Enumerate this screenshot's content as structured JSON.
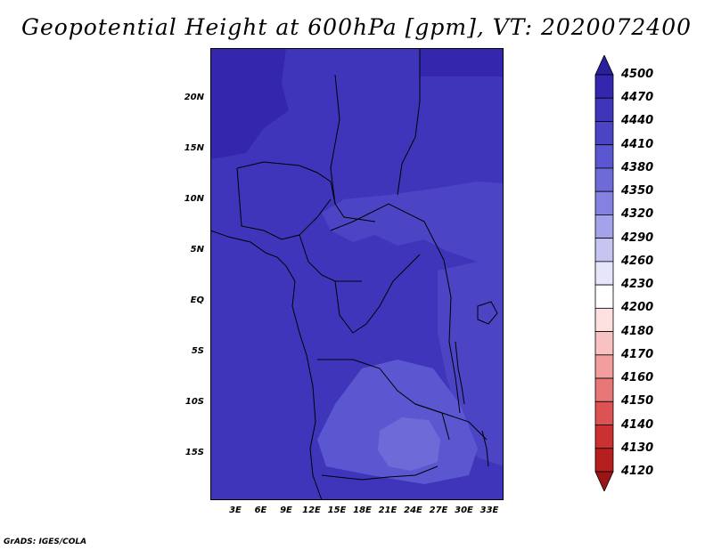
{
  "title": "Geopotential Height at 600hPa [gpm], VT: 2020072400",
  "lat_labels": [
    "20N",
    "15N",
    "10N",
    "5N",
    "EQ",
    "5S",
    "10S",
    "15S"
  ],
  "lon_labels": [
    "3E",
    "6E",
    "9E",
    "12E",
    "15E",
    "18E",
    "21E",
    "24E",
    "27E",
    "30E",
    "33E"
  ],
  "colorbar": {
    "levels": [
      "4500",
      "4470",
      "4440",
      "4410",
      "4380",
      "4350",
      "4320",
      "4290",
      "4260",
      "4230",
      "4200",
      "4180",
      "4170",
      "4160",
      "4150",
      "4140",
      "4130",
      "4120"
    ],
    "colors": [
      "#2a1f9c",
      "#3527ad",
      "#3f35bb",
      "#4b45c6",
      "#5a57d0",
      "#6d6bd8",
      "#8482e0",
      "#a4a3ea",
      "#c6c5f2",
      "#e6e6fa",
      "#ffffff",
      "#fde0e0",
      "#f9c2c2",
      "#f29e9e",
      "#e87777",
      "#dd5252",
      "#cc3131",
      "#b51f1f",
      "#9c1515"
    ]
  },
  "credit": "GrADS: IGES/COLA"
}
